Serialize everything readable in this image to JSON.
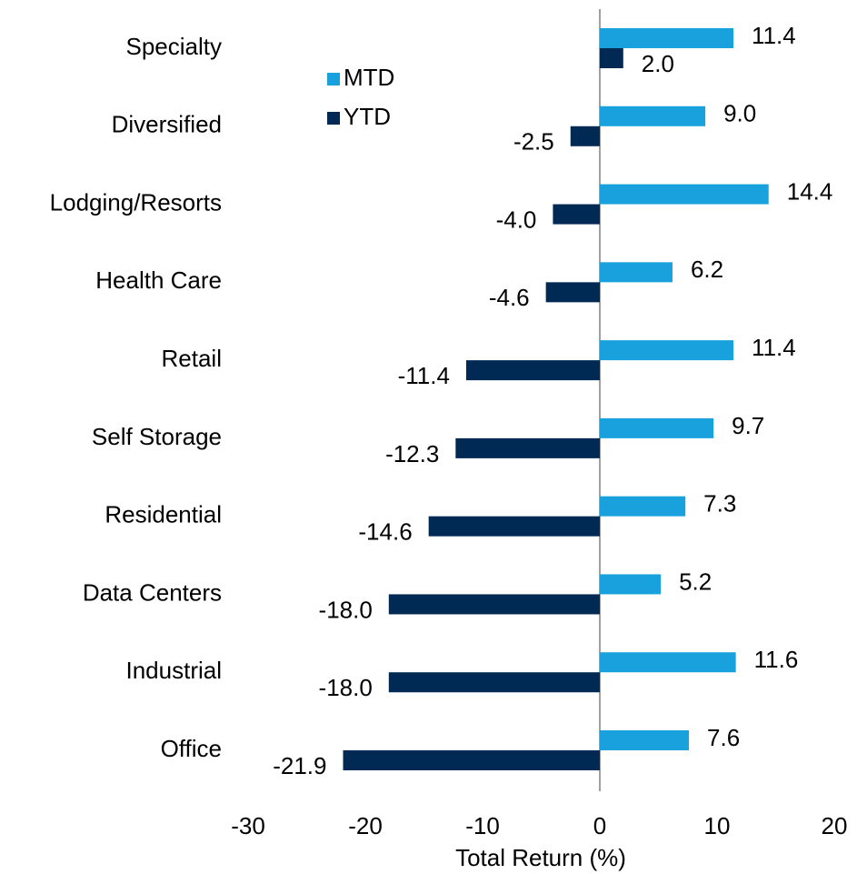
{
  "chart_data": {
    "type": "bar",
    "orientation": "horizontal",
    "categories": [
      "Specialty",
      "Diversified",
      "Lodging/Resorts",
      "Health Care",
      "Retail",
      "Self Storage",
      "Residential",
      "Data Centers",
      "Industrial",
      "Office"
    ],
    "series": [
      {
        "name": "MTD",
        "color": "#18a1dc",
        "values": [
          11.4,
          9.0,
          14.4,
          6.2,
          11.4,
          9.7,
          7.3,
          5.2,
          11.6,
          7.6
        ],
        "value_labels": [
          "11.4",
          "9.0",
          "14.4",
          "6.2",
          "11.4",
          "9.7",
          "7.3",
          "5.2",
          "11.6",
          "7.6"
        ]
      },
      {
        "name": "YTD",
        "color": "#002a54",
        "values": [
          2.0,
          -2.5,
          -4.0,
          -4.6,
          -11.4,
          -12.3,
          -14.6,
          -18.0,
          -18.0,
          -21.9
        ],
        "value_labels": [
          "2.0",
          "-2.5",
          "-4.0",
          "-4.6",
          "-11.4",
          "-12.3",
          "-14.6",
          "-18.0",
          "-18.0",
          "-21.9"
        ]
      }
    ],
    "xlabel": "Total Return (%)",
    "xlim": [
      -30,
      20
    ],
    "xticks": [
      -30,
      -20,
      -10,
      0,
      10,
      20
    ],
    "legend": "upper left"
  }
}
